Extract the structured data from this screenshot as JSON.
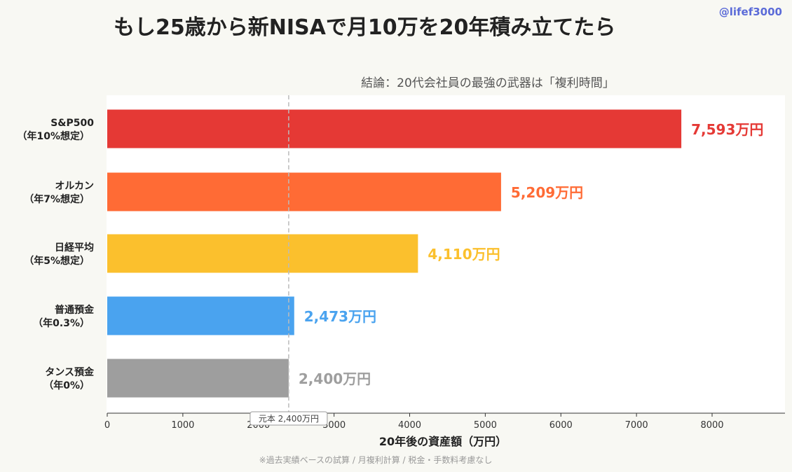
{
  "title": "もし25歳から新NISAで月10万を20年積み立てたら",
  "handle": "@lifef3000",
  "chart_data": {
    "type": "bar",
    "orientation": "horizontal",
    "subtitle": "結論：20代会社員の最強の武器は「複利時間」",
    "categories": [
      {
        "line1": "S&P500",
        "line2": "（年10%想定）"
      },
      {
        "line1": "オルカン",
        "line2": "（年7%想定）"
      },
      {
        "line1": "日経平均",
        "line2": "（年5%想定）"
      },
      {
        "line1": "普通預金",
        "line2": "（年0.3%）"
      },
      {
        "line1": "タンス預金",
        "line2": "（年0%）"
      }
    ],
    "values": [
      7593,
      5209,
      4110,
      2473,
      2400
    ],
    "value_labels": [
      "7,593万円",
      "5,209万円",
      "4,110万円",
      "2,473万円",
      "2,400万円"
    ],
    "colors": [
      "#e53935",
      "#ff6b35",
      "#fbc02d",
      "#4aa3ef",
      "#9e9e9e"
    ],
    "xlabel": "20年後の資産額（万円）",
    "xlim": [
      0,
      9000
    ],
    "xticks": [
      0,
      1000,
      2000,
      3000,
      4000,
      5000,
      6000,
      7000,
      8000
    ],
    "reference_line": {
      "value": 2400,
      "label": "元本 2,400万円"
    },
    "footnote": "※過去実績ベースの試算 / 月複利計算 / 税金・手数料考慮なし"
  }
}
